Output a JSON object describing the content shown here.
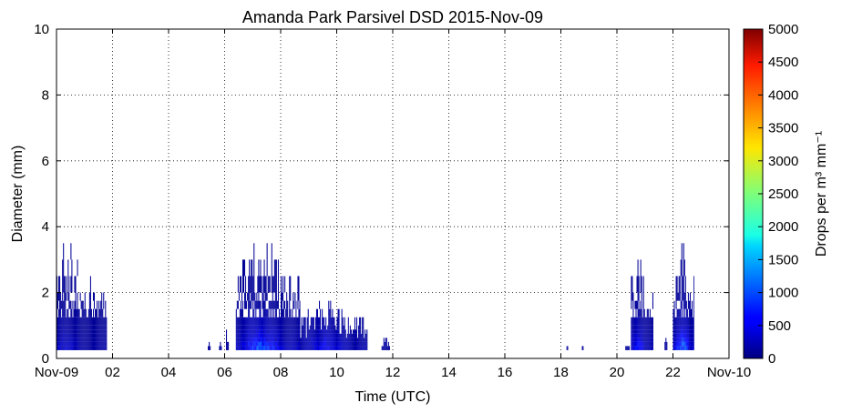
{
  "chart_data": {
    "type": "heatmap",
    "title": "Amanda Park Parsivel DSD 2015-Nov-09",
    "xlabel": "Time (UTC)",
    "ylabel": "Diameter (mm)",
    "xlim": [
      0,
      24
    ],
    "ylim": [
      0,
      10
    ],
    "x_ticks": [
      {
        "value": 0,
        "label": "Nov-09"
      },
      {
        "value": 2,
        "label": "02"
      },
      {
        "value": 4,
        "label": "04"
      },
      {
        "value": 6,
        "label": "06"
      },
      {
        "value": 8,
        "label": "08"
      },
      {
        "value": 10,
        "label": "10"
      },
      {
        "value": 12,
        "label": "12"
      },
      {
        "value": 14,
        "label": "14"
      },
      {
        "value": 16,
        "label": "16"
      },
      {
        "value": 18,
        "label": "18"
      },
      {
        "value": 20,
        "label": "20"
      },
      {
        "value": 22,
        "label": "22"
      },
      {
        "value": 24,
        "label": "Nov-10"
      }
    ],
    "y_ticks": [
      {
        "value": 0,
        "label": "0"
      },
      {
        "value": 2,
        "label": "2"
      },
      {
        "value": 4,
        "label": "4"
      },
      {
        "value": 6,
        "label": "6"
      },
      {
        "value": 8,
        "label": "8"
      },
      {
        "value": 10,
        "label": "10"
      }
    ],
    "grid": true,
    "colorbar": {
      "label": "Drops per m³ mm⁻¹",
      "range": [
        0,
        5000
      ],
      "colormap": "jet",
      "ticks": [
        {
          "value": 0,
          "label": "0"
        },
        {
          "value": 500,
          "label": "500"
        },
        {
          "value": 1000,
          "label": "1000"
        },
        {
          "value": 1500,
          "label": "1500"
        },
        {
          "value": 2000,
          "label": "2000"
        },
        {
          "value": 2500,
          "label": "2500"
        },
        {
          "value": 3000,
          "label": "3000"
        },
        {
          "value": 3500,
          "label": "3500"
        },
        {
          "value": 4000,
          "label": "4000"
        },
        {
          "value": 4500,
          "label": "4500"
        },
        {
          "value": 5000,
          "label": "5000"
        }
      ]
    },
    "rain_periods": [
      {
        "start": 0.0,
        "end": 1.8,
        "max_diameter": 3.6,
        "peak": 450,
        "peak_time": 0.3
      },
      {
        "start": 5.4,
        "end": 5.5,
        "max_diameter": 0.4,
        "peak": 60,
        "peak_time": 5.45
      },
      {
        "start": 5.8,
        "end": 5.9,
        "max_diameter": 0.6,
        "peak": 60,
        "peak_time": 5.85
      },
      {
        "start": 6.05,
        "end": 6.15,
        "max_diameter": 0.9,
        "peak": 80,
        "peak_time": 6.1
      },
      {
        "start": 6.4,
        "end": 8.7,
        "max_diameter": 4.1,
        "peak": 1300,
        "peak_time": 7.3
      },
      {
        "start": 8.7,
        "end": 11.1,
        "max_diameter": 1.8,
        "peak": 700,
        "peak_time": 9.6
      },
      {
        "start": 11.6,
        "end": 11.9,
        "max_diameter": 0.7,
        "peak": 120,
        "peak_time": 11.7
      },
      {
        "start": 18.2,
        "end": 18.25,
        "max_diameter": 0.4,
        "peak": 50,
        "peak_time": 18.22
      },
      {
        "start": 18.75,
        "end": 18.8,
        "max_diameter": 0.4,
        "peak": 50,
        "peak_time": 18.77
      },
      {
        "start": 20.3,
        "end": 20.45,
        "max_diameter": 0.4,
        "peak": 80,
        "peak_time": 20.4
      },
      {
        "start": 20.5,
        "end": 21.3,
        "max_diameter": 3.0,
        "peak": 900,
        "peak_time": 20.75
      },
      {
        "start": 21.7,
        "end": 21.8,
        "max_diameter": 0.6,
        "peak": 70,
        "peak_time": 21.75
      },
      {
        "start": 22.0,
        "end": 22.75,
        "max_diameter": 3.6,
        "peak": 1600,
        "peak_time": 22.35
      }
    ]
  }
}
